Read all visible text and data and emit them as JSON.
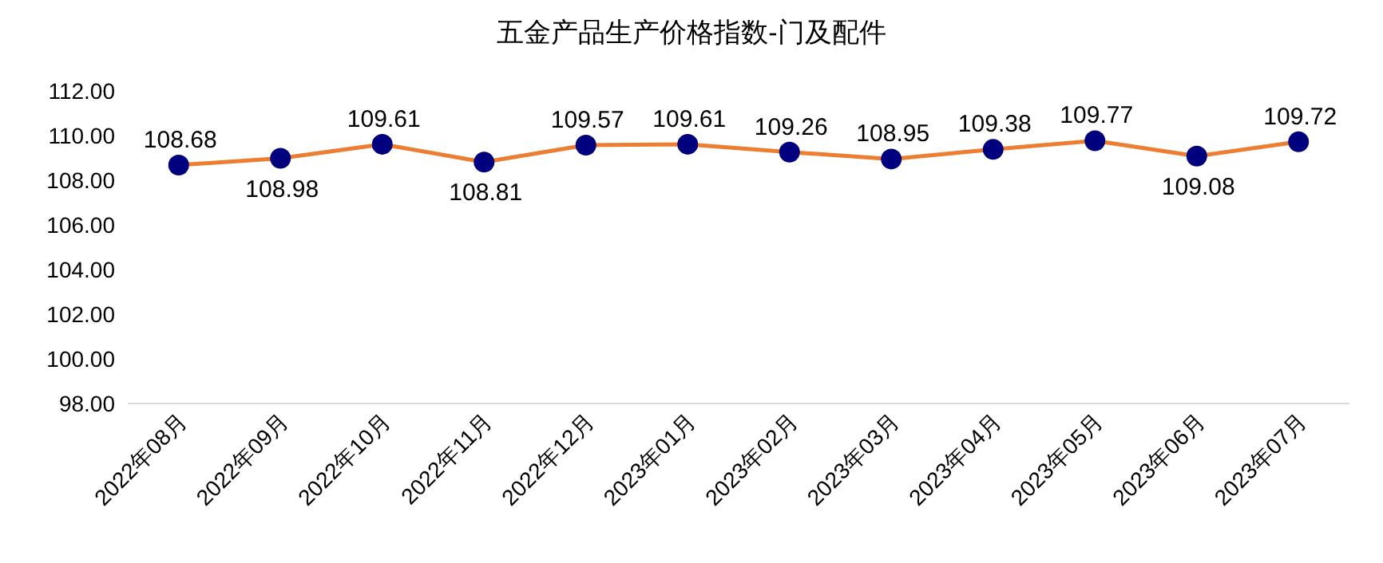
{
  "chart_data": {
    "type": "line",
    "title": "五金产品生产价格指数-门及配件",
    "categories": [
      "2022年08月",
      "2022年09月",
      "2022年10月",
      "2022年11月",
      "2022年12月",
      "2023年01月",
      "2023年02月",
      "2023年03月",
      "2023年04月",
      "2023年05月",
      "2023年06月",
      "2023年07月"
    ],
    "series": [
      {
        "color": "#ed7d31",
        "values": [
          108.68,
          108.98,
          109.61,
          108.81,
          109.57,
          109.61,
          109.26,
          108.95,
          109.38,
          109.77,
          109.08,
          109.72
        ]
      }
    ],
    "ylim": [
      98,
      112
    ],
    "yticks": [
      {
        "value": 98,
        "label": "98.00"
      },
      {
        "value": 100,
        "label": "100.00"
      },
      {
        "value": 102,
        "label": "102.00"
      },
      {
        "value": 104,
        "label": "104.00"
      },
      {
        "value": 106,
        "label": "106.00"
      },
      {
        "value": 108,
        "label": "108.00"
      },
      {
        "value": 110,
        "label": "110.00"
      },
      {
        "value": 112,
        "label": "112.00"
      }
    ],
    "data_labels": true,
    "marker": "circle",
    "line_style": "solid",
    "grid": false
  }
}
